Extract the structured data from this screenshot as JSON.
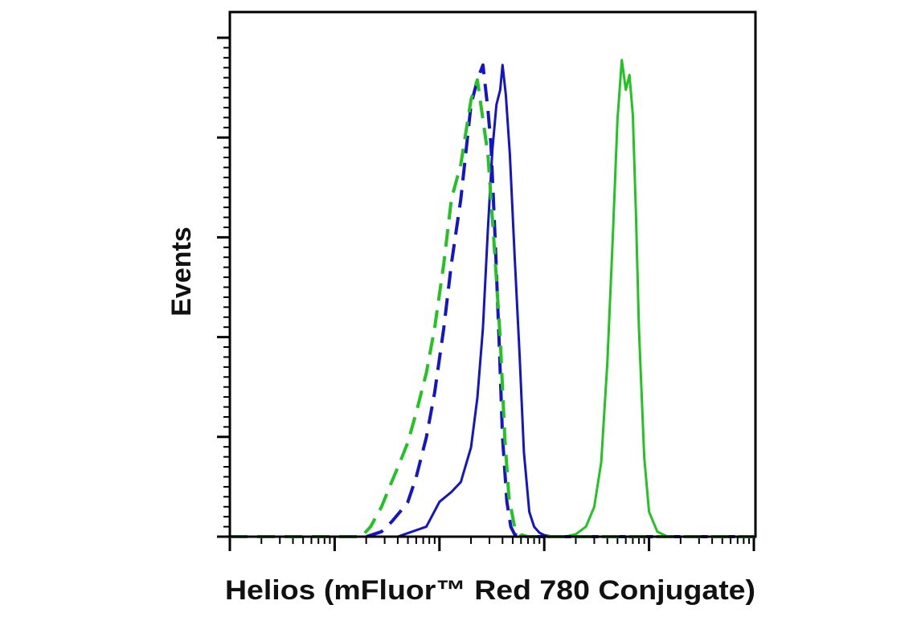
{
  "chart_data": {
    "type": "line",
    "title": "",
    "xlabel": "Helios (mFluor™ Red 780 Conjugate)",
    "ylabel": "Events",
    "x_scale": "log",
    "xlim": [
      1,
      100000
    ],
    "ylim": [
      0,
      1
    ],
    "show_tick_labels": false,
    "grid": false,
    "legend": "none",
    "colors": {
      "blue": "#1414c8",
      "green": "#22c322",
      "axis": "#000000"
    },
    "series": [
      {
        "color": "#1414c8",
        "style": "solid",
        "x": [
          1,
          40,
          75,
          100,
          130,
          160,
          200,
          230,
          260,
          290,
          320,
          350,
          380,
          400,
          430,
          470,
          520,
          580,
          640,
          720,
          800,
          900,
          1000,
          1200,
          100000
        ],
        "y": [
          0,
          0,
          0.02,
          0.07,
          0.09,
          0.11,
          0.18,
          0.28,
          0.42,
          0.62,
          0.78,
          0.87,
          0.9,
          0.95,
          0.89,
          0.77,
          0.57,
          0.37,
          0.17,
          0.05,
          0.02,
          0.008,
          0.003,
          0,
          0
        ]
      },
      {
        "color": "#22c322",
        "style": "solid",
        "x": [
          1,
          1600,
          2000,
          2500,
          3000,
          3500,
          4000,
          4500,
          5000,
          5500,
          6000,
          6500,
          7000,
          7500,
          8000,
          9000,
          10000,
          12000,
          15000,
          100000
        ],
        "y": [
          0,
          0,
          0.005,
          0.02,
          0.06,
          0.15,
          0.35,
          0.6,
          0.84,
          0.96,
          0.9,
          0.93,
          0.85,
          0.65,
          0.42,
          0.16,
          0.05,
          0.01,
          0,
          0
        ]
      },
      {
        "color": "#1414c8",
        "style": "dashed",
        "x": [
          1,
          20,
          28,
          35,
          42,
          50,
          60,
          75,
          90,
          110,
          130,
          160,
          200,
          230,
          260,
          290,
          310,
          340,
          370,
          400,
          440,
          480,
          520,
          580,
          640,
          100000
        ],
        "y": [
          0,
          0,
          0.01,
          0.03,
          0.05,
          0.07,
          0.12,
          0.2,
          0.29,
          0.42,
          0.55,
          0.68,
          0.87,
          0.92,
          0.95,
          0.86,
          0.79,
          0.6,
          0.4,
          0.2,
          0.07,
          0.02,
          0.005,
          0,
          0,
          0
        ]
      },
      {
        "color": "#22c322",
        "style": "dashed",
        "x": [
          1,
          18,
          22,
          28,
          35,
          42,
          50,
          60,
          75,
          90,
          110,
          130,
          160,
          200,
          230,
          260,
          290,
          330,
          380,
          420,
          460,
          520,
          600,
          700,
          100000
        ],
        "y": [
          0,
          0,
          0.02,
          0.06,
          0.11,
          0.15,
          0.19,
          0.25,
          0.33,
          0.42,
          0.55,
          0.68,
          0.75,
          0.88,
          0.92,
          0.84,
          0.77,
          0.6,
          0.4,
          0.2,
          0.08,
          0.02,
          0.004,
          0,
          0
        ]
      }
    ]
  }
}
